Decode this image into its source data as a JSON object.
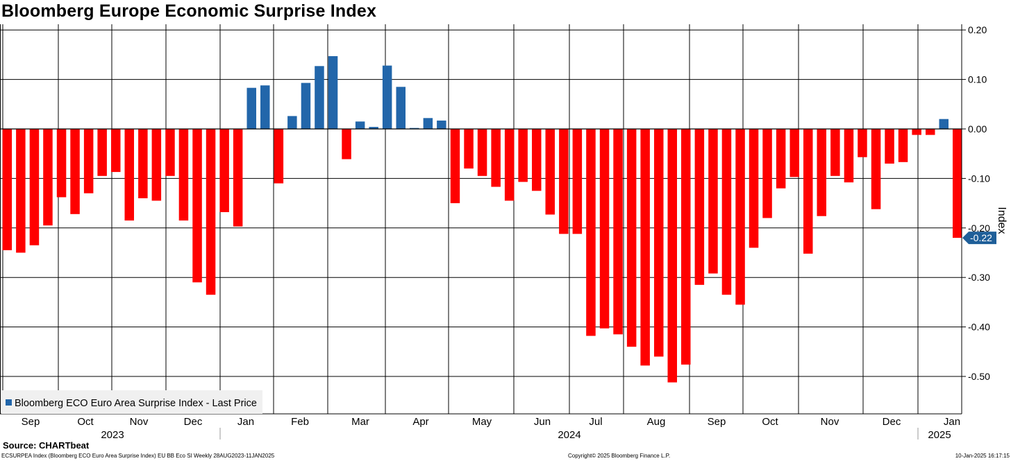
{
  "chart_data": {
    "type": "bar",
    "title": "Bloomberg Europe Economic Surprise Index",
    "ylabel": "Index",
    "ylim": [
      -0.58,
      0.2
    ],
    "yticks": [
      "0.20",
      "0.10",
      "0.00",
      "-0.10",
      "-0.20",
      "-0.30",
      "-0.40",
      "-0.50"
    ],
    "ytick_values": [
      0.2,
      0.1,
      0.0,
      -0.1,
      -0.2,
      -0.3,
      -0.4,
      -0.5
    ],
    "positive_color": "#2266aa",
    "negative_color": "#ff0000",
    "legend": "Bloomberg ECO Euro Area Surprise Index - Last Price",
    "last_price_label": "-0.22",
    "last_price": -0.22,
    "month_labels": [
      "Sep",
      "Oct",
      "Nov",
      "Dec",
      "Jan",
      "Feb",
      "Mar",
      "Apr",
      "May",
      "Jun",
      "Jul",
      "Aug",
      "Sep",
      "Oct",
      "Nov",
      "Dec",
      "Jan"
    ],
    "years": [
      "2023",
      "2024",
      "2025"
    ],
    "period": "Weekly 28AUG2023-11JAN2025",
    "values": [
      -0.245,
      -0.25,
      -0.235,
      -0.195,
      -0.138,
      -0.172,
      -0.13,
      -0.095,
      -0.087,
      -0.185,
      -0.14,
      -0.145,
      -0.095,
      -0.185,
      -0.31,
      -0.335,
      -0.168,
      -0.197,
      0.083,
      0.088,
      -0.11,
      0.026,
      0.093,
      0.127,
      0.147,
      -0.061,
      0.015,
      0.004,
      0.128,
      0.085,
      0.002,
      0.022,
      0.017,
      -0.15,
      -0.08,
      -0.095,
      -0.117,
      -0.145,
      -0.107,
      -0.125,
      -0.173,
      -0.212,
      -0.212,
      -0.418,
      -0.403,
      -0.415,
      -0.44,
      -0.478,
      -0.46,
      -0.512,
      -0.476,
      -0.315,
      -0.292,
      -0.335,
      -0.355,
      -0.24,
      -0.18,
      -0.12,
      -0.097,
      -0.252,
      -0.176,
      -0.095,
      -0.108,
      -0.057,
      -0.162,
      -0.07,
      -0.067,
      -0.012,
      -0.012,
      0.02,
      -0.22
    ]
  },
  "source": "Source: CHARTbeat",
  "footer": {
    "left": "ECSURPEA Index (Bloomberg ECO Euro Area Surprise Index) EU BB Eco SI  Weekly 28AUG2023-11JAN2025",
    "middle": "Copyright© 2025 Bloomberg Finance L.P.",
    "right": "10-Jan-2025 16:17:15"
  }
}
